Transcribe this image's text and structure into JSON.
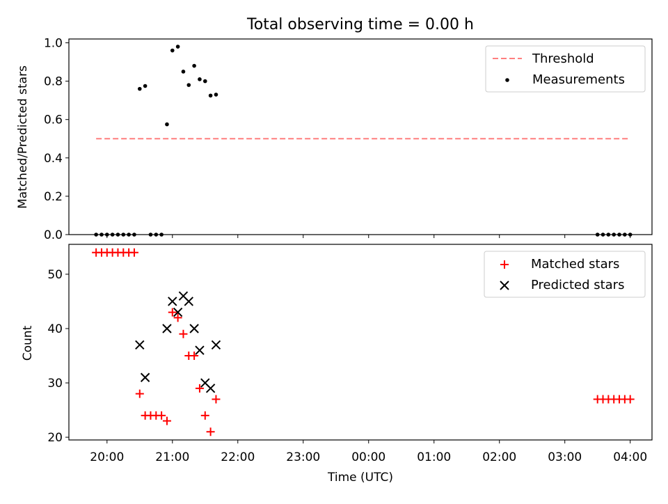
{
  "chart_data": [
    {
      "type": "scatter",
      "title": "Total observing time = 0.00 h",
      "ylabel": "Matched/Predicted stars",
      "xlabel": "",
      "ylim": [
        0.0,
        1.02
      ],
      "yticks": [
        0.0,
        0.2,
        0.4,
        0.6,
        0.8,
        1.0
      ],
      "ytick_labels": [
        "0.0",
        "0.2",
        "0.4",
        "0.6",
        "0.8",
        "1.0"
      ],
      "grid": false,
      "legend_position": "upper-right",
      "series": [
        {
          "name": "Threshold",
          "kind": "dashed-line",
          "color": "#ff7f7f",
          "x": [
            "19:50",
            "03:58"
          ],
          "y": [
            0.5,
            0.5
          ]
        },
        {
          "name": "Measurements",
          "kind": "points",
          "color": "#000000",
          "x": [
            "19:50",
            "19:55",
            "20:00",
            "20:05",
            "20:10",
            "20:15",
            "20:20",
            "20:25",
            "20:30",
            "20:35",
            "20:40",
            "20:45",
            "20:50",
            "20:55",
            "21:00",
            "21:05",
            "21:10",
            "21:15",
            "21:20",
            "21:25",
            "21:30",
            "21:35",
            "21:40",
            "03:30",
            "03:35",
            "03:40",
            "03:45",
            "03:50",
            "03:55",
            "04:00"
          ],
          "y": [
            0,
            0,
            0,
            0,
            0,
            0,
            0,
            0,
            0.76,
            0.775,
            0,
            0,
            0,
            0.575,
            0.96,
            0.98,
            0.85,
            0.78,
            0.88,
            0.81,
            0.8,
            0.725,
            0.73,
            0,
            0,
            0,
            0,
            0,
            0,
            0
          ]
        }
      ]
    },
    {
      "type": "scatter",
      "title": "",
      "ylabel": "Count",
      "xlabel": "Time (UTC)",
      "ylim": [
        19.5,
        55.5
      ],
      "yticks": [
        20,
        30,
        40,
        50
      ],
      "ytick_labels": [
        "20",
        "30",
        "40",
        "50"
      ],
      "grid": false,
      "legend_position": "upper-right",
      "series": [
        {
          "name": "Matched stars",
          "kind": "plus",
          "color": "#ff0000",
          "x": [
            "19:50",
            "19:55",
            "20:00",
            "20:05",
            "20:10",
            "20:15",
            "20:20",
            "20:25",
            "20:30",
            "20:35",
            "20:40",
            "20:45",
            "20:50",
            "20:55",
            "21:00",
            "21:05",
            "21:10",
            "21:15",
            "21:20",
            "21:25",
            "21:30",
            "21:35",
            "21:40",
            "03:30",
            "03:35",
            "03:40",
            "03:45",
            "03:50",
            "03:55",
            "04:00"
          ],
          "y": [
            54,
            54,
            54,
            54,
            54,
            54,
            54,
            54,
            28,
            24,
            24,
            24,
            24,
            23,
            43,
            42,
            39,
            35,
            35,
            29,
            24,
            21,
            27,
            27,
            27,
            27,
            27,
            27,
            27,
            27
          ]
        },
        {
          "name": "Predicted stars",
          "kind": "cross",
          "color": "#000000",
          "x": [
            "20:30",
            "20:35",
            "20:55",
            "21:00",
            "21:05",
            "21:10",
            "21:15",
            "21:20",
            "21:25",
            "21:30",
            "21:35",
            "21:40"
          ],
          "y": [
            37,
            31,
            40,
            45,
            43,
            46,
            45,
            40,
            36,
            30,
            29,
            37
          ]
        }
      ],
      "xticks": [
        "20:00",
        "21:00",
        "22:00",
        "23:00",
        "00:00",
        "01:00",
        "02:00",
        "03:00",
        "04:00"
      ]
    }
  ]
}
